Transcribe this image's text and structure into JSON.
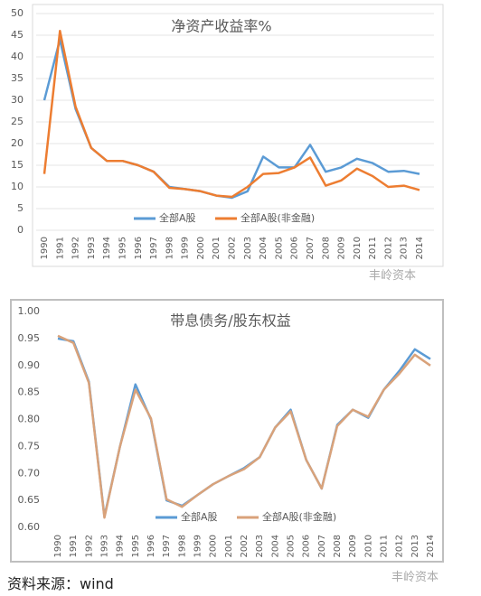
{
  "chart_data": [
    {
      "type": "line",
      "title": "净资产收益率%",
      "categories": [
        "1990",
        "1991",
        "1992",
        "1993",
        "1994",
        "1995",
        "1996",
        "1997",
        "1998",
        "1999",
        "2000",
        "2001",
        "2002",
        "2003",
        "2004",
        "2005",
        "2006",
        "2007",
        "2008",
        "2009",
        "2010",
        "2011",
        "2012",
        "2013",
        "2014"
      ],
      "series": [
        {
          "name": "全部A股",
          "color": "#5b9bd5",
          "values": [
            30,
            44,
            28,
            19,
            16,
            16,
            15,
            13.5,
            10,
            9.5,
            9,
            8,
            7.5,
            9,
            17,
            14.5,
            14.5,
            19.7,
            13.5,
            14.5,
            16.5,
            15.5,
            13.5,
            13.7,
            13
          ]
        },
        {
          "name": "全部A股(非金融)",
          "color": "#ed7d31",
          "values": [
            13,
            46,
            28.5,
            19,
            16,
            16,
            15,
            13.5,
            9.8,
            9.5,
            9,
            8,
            7.7,
            10,
            13,
            13.2,
            14.5,
            16.8,
            10.3,
            11.5,
            14.2,
            12.5,
            10,
            10.3,
            9.3
          ]
        }
      ],
      "ylim": [
        0,
        50
      ],
      "yticks": [
        0,
        5,
        10,
        15,
        20,
        25,
        30,
        35,
        40,
        45,
        50
      ],
      "grid": true,
      "legend": "bottom"
    },
    {
      "type": "line",
      "title": "带息债务/股东权益",
      "categories": [
        "1990",
        "1991",
        "1992",
        "1993",
        "1994",
        "1995",
        "1996",
        "1997",
        "1998",
        "1999",
        "2000",
        "2001",
        "2002",
        "2003",
        "2004",
        "2005",
        "2006",
        "2007",
        "2008",
        "2009",
        "2010",
        "2011",
        "2012",
        "2013",
        "2014"
      ],
      "series": [
        {
          "name": "全部A股",
          "color": "#5b9bd5",
          "values": [
            0.95,
            0.945,
            0.87,
            0.62,
            0.75,
            0.865,
            0.8,
            0.65,
            0.64,
            0.66,
            0.68,
            0.695,
            0.71,
            0.73,
            0.785,
            0.818,
            0.725,
            0.672,
            0.79,
            0.818,
            0.803,
            0.855,
            0.89,
            0.93,
            0.912
          ]
        },
        {
          "name": "全部A股(非金融)",
          "color": "#d9a27a",
          "values": [
            0.955,
            0.942,
            0.868,
            0.618,
            0.75,
            0.855,
            0.802,
            0.652,
            0.638,
            0.66,
            0.68,
            0.695,
            0.708,
            0.73,
            0.785,
            0.815,
            0.725,
            0.672,
            0.788,
            0.818,
            0.805,
            0.855,
            0.885,
            0.92,
            0.9
          ]
        }
      ],
      "ylim": [
        0.6,
        1.0
      ],
      "yticks": [
        {
          "value": 0.6,
          "label": "0.60"
        },
        {
          "value": 0.65,
          "label": "0.65"
        },
        {
          "value": 0.7,
          "label": "0.70"
        },
        {
          "value": 0.75,
          "label": "0.75"
        },
        {
          "value": 0.8,
          "label": "0.80"
        },
        {
          "value": 0.85,
          "label": "0.85"
        },
        {
          "value": 0.9,
          "label": "0.90"
        },
        {
          "value": 0.95,
          "label": "0.95"
        },
        {
          "value": 1.0,
          "label": "1.00"
        }
      ],
      "grid": false,
      "legend": "bottom"
    }
  ],
  "source": "资料来源：wind",
  "watermark": "丰岭资本"
}
